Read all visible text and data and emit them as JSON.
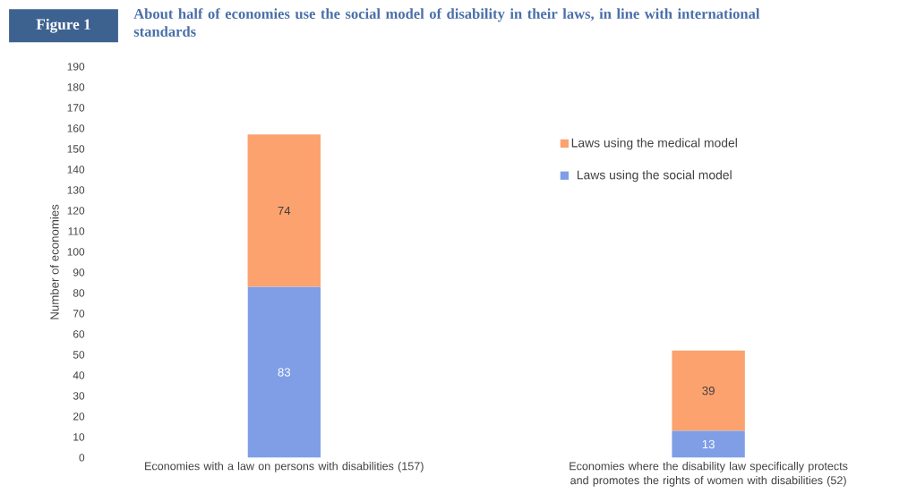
{
  "chart_data": {
    "type": "bar",
    "stacked": true,
    "title": "About half of economies use the social model of disability in their laws, in line with international standards",
    "annotations": [
      "Figure 1"
    ],
    "ylabel": "Number of economies",
    "categories": [
      "Economies with a law on persons with disabilities (157)",
      "Economies where the disability law specifically protects and promotes the rights of women with disabilities (52)"
    ],
    "series": [
      {
        "name": "Laws using the social model",
        "color": "#7f9ee6",
        "values": [
          83,
          13
        ]
      },
      {
        "name": "Laws using the medical model",
        "color": "#fba26f",
        "values": [
          74,
          39
        ]
      }
    ],
    "ylim": [
      0,
      190
    ],
    "yticks": [
      0,
      10,
      20,
      30,
      40,
      50,
      60,
      70,
      80,
      90,
      100,
      110,
      120,
      130,
      140,
      150,
      160,
      170,
      180,
      190
    ],
    "data_labels": true,
    "legend": "top right",
    "grid": false
  }
}
